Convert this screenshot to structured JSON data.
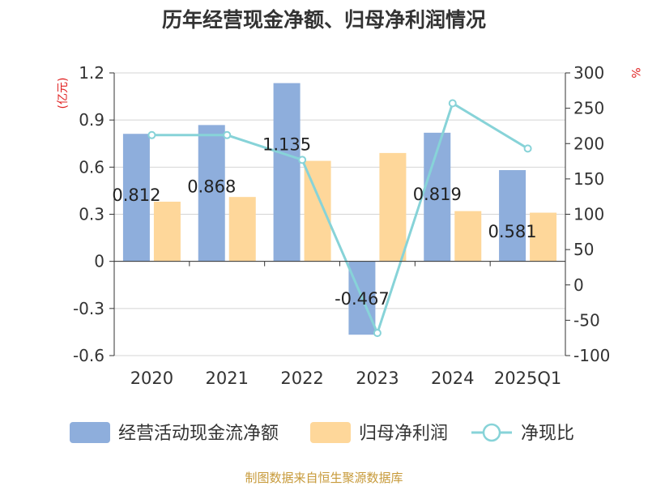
{
  "chart_data": {
    "type": "bar",
    "title": "历年经营现金净额、归母净利润情况",
    "categories": [
      "2020",
      "2021",
      "2022",
      "2023",
      "2024",
      "2025Q1"
    ],
    "series": [
      {
        "name": "经营活动现金流净额",
        "axis": "left",
        "kind": "bar",
        "color": "#8eaedc",
        "values": [
          0.812,
          0.868,
          1.135,
          -0.467,
          0.819,
          0.581
        ],
        "labels": [
          "0.812",
          "0.868",
          "1.135",
          "-0.467",
          "0.819",
          "0.581"
        ]
      },
      {
        "name": "归母净利润",
        "axis": "left",
        "kind": "bar",
        "color": "#fed79a",
        "values": [
          0.38,
          0.41,
          0.64,
          0.69,
          0.32,
          0.31
        ]
      },
      {
        "name": "净现比",
        "axis": "right",
        "kind": "line",
        "color": "#87d3d8",
        "values": [
          212,
          212,
          177,
          -68,
          257,
          193
        ]
      }
    ],
    "yleft": {
      "label": "(亿元)",
      "ylim": [
        -0.6,
        1.2
      ],
      "ticks": [
        1.2,
        0.9,
        0.6,
        0.3,
        0,
        -0.3,
        -0.6
      ],
      "tick_labels": [
        "1.2",
        "0.9",
        "0.6",
        "0.3",
        "0",
        "-0.3",
        "-0.6"
      ]
    },
    "yright": {
      "label": "%",
      "ylim": [
        -100,
        300
      ],
      "ticks": [
        300,
        250,
        200,
        150,
        100,
        50,
        0,
        -50,
        -100
      ],
      "tick_labels": [
        "300",
        "250",
        "200",
        "150",
        "100",
        "50",
        "0",
        "-50",
        "-100"
      ]
    },
    "grid": true,
    "legend_position": "bottom",
    "left_label_color": "#e02020",
    "right_label_color": "#e02020"
  },
  "source": "制图数据来自恒生聚源数据库",
  "source_color": "#c79a3a"
}
